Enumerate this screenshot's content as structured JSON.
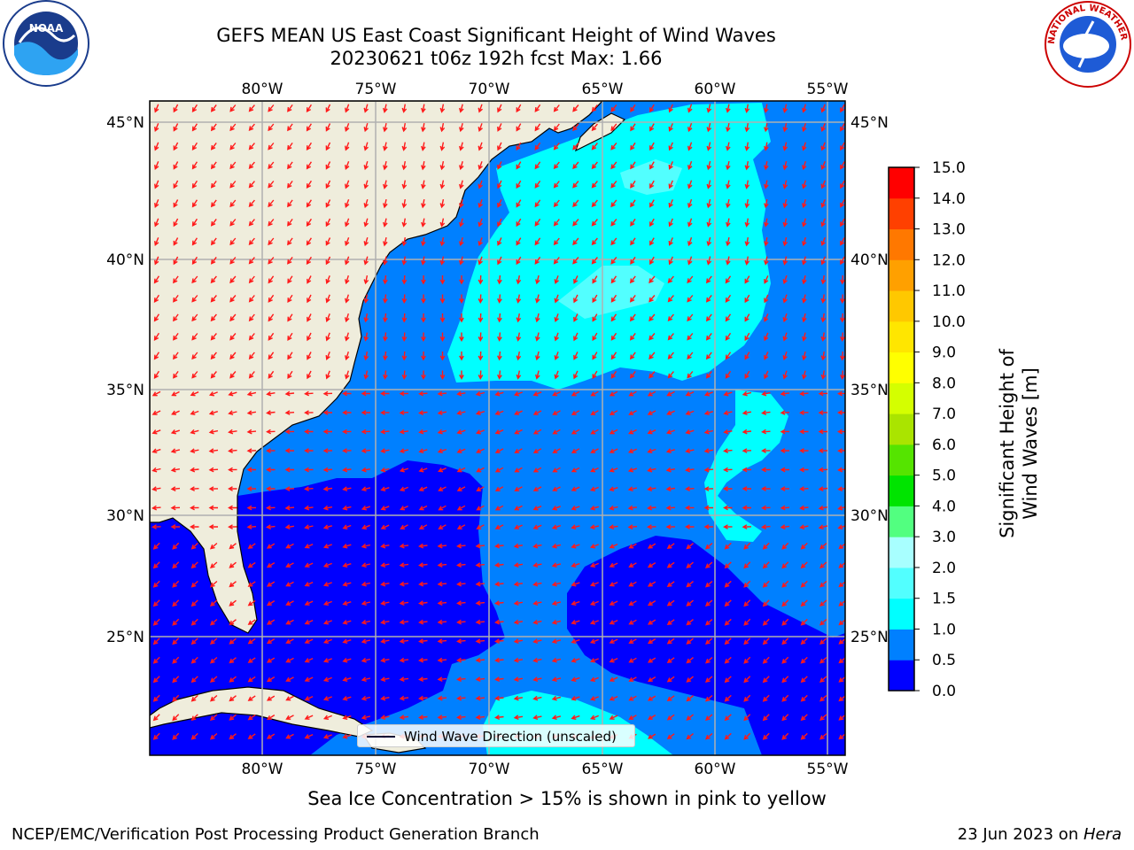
{
  "title": {
    "line1": "GEFS MEAN US East Coast Significant Height of Wind Waves",
    "line2": "20230621 t06z 192h fcst   Max: 1.66"
  },
  "map": {
    "lon_labels": [
      "80°W",
      "75°W",
      "70°W",
      "65°W",
      "60°W",
      "55°W"
    ],
    "lat_labels": [
      "45°N",
      "40°N",
      "35°N",
      "30°N",
      "25°N"
    ],
    "lon_values": [
      -80,
      -75,
      -70,
      -65,
      -60,
      -55
    ],
    "lat_values": [
      45,
      40,
      35,
      30,
      25
    ],
    "lon_range": [
      -85,
      -54.3
    ],
    "lat_range": [
      20.4,
      46.1
    ],
    "colors": {
      "land": "#efeddc",
      "coast": "#000000",
      "grid": "#b0b0b0",
      "arrow": "#ff1a1a",
      "ocean_0_05": "#0000ff",
      "ocean_05_10": "#0080ff",
      "ocean_10_15": "#00ffff",
      "ocean_15_20": "#52ffff"
    },
    "legend_label": "Wind Wave Direction (unscaled)"
  },
  "colorbar": {
    "levels": [
      "0.0",
      "0.5",
      "1.0",
      "1.5",
      "2.0",
      "3.0",
      "4.0",
      "5.0",
      "6.0",
      "7.0",
      "8.0",
      "9.0",
      "10.0",
      "11.0",
      "12.0",
      "13.0",
      "14.0",
      "15.0"
    ],
    "colors": [
      "#0000ff",
      "#0080ff",
      "#00ffff",
      "#52ffff",
      "#a8ffff",
      "#52ff80",
      "#00e400",
      "#55e400",
      "#aae400",
      "#d4ff00",
      "#ffff00",
      "#ffe600",
      "#ffc800",
      "#ffa000",
      "#ff7800",
      "#ff4000",
      "#ff0000"
    ],
    "label": "Significant Height of Wind Waves [m]"
  },
  "sea_ice_note": "Sea Ice Concentration > 15% is shown in pink to yellow",
  "footer": {
    "left": "NCEP/EMC/Verification Post Processing Product Generation Branch",
    "right_date": "23 Jun 2023 on ",
    "right_machine": "Hera"
  },
  "logos": {
    "noaa": "NOAA",
    "nws": "NATIONAL WEATHER SERVICE"
  }
}
